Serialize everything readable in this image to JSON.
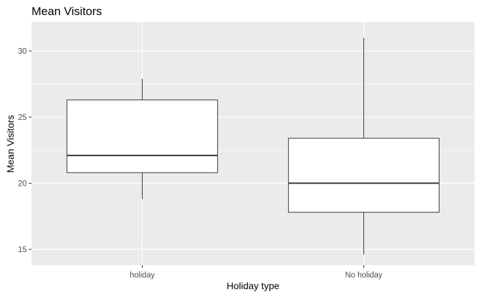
{
  "chart_data": {
    "type": "boxplot",
    "title": "Mean Visitors",
    "xlabel": "Holiday type",
    "ylabel": "Mean Visitors",
    "ylim": [
      13.8,
      32.2
    ],
    "yticks": [
      15,
      20,
      25,
      30
    ],
    "grid": true,
    "categories": [
      "holiday",
      "No holiday"
    ],
    "boxes": [
      {
        "category": "holiday",
        "min": 18.8,
        "q1": 20.8,
        "median": 22.1,
        "q3": 26.3,
        "max": 27.9
      },
      {
        "category": "No holiday",
        "min": 14.6,
        "q1": 17.8,
        "median": 20.0,
        "q3": 23.4,
        "max": 31.0
      }
    ]
  }
}
